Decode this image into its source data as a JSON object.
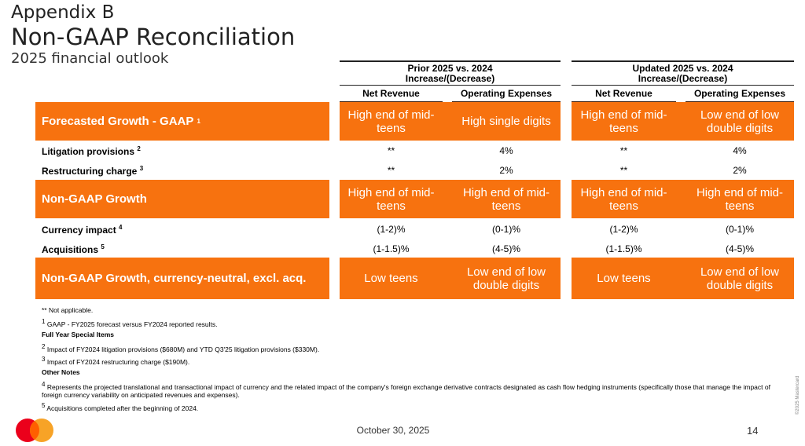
{
  "title": {
    "appendix": "Appendix B",
    "main": "Non-GAAP Reconciliation",
    "subtitle": "2025 financial outlook"
  },
  "groups": [
    {
      "line1": "Prior 2025 vs. 2024",
      "line2": "Increase/(Decrease)"
    },
    {
      "line1": "Updated 2025 vs. 2024",
      "line2": "Increase/(Decrease)"
    }
  ],
  "columns": [
    "Net Revenue",
    "Operating Expenses",
    "Net Revenue",
    "Operating Expenses"
  ],
  "rows": [
    {
      "label": "Forecasted Growth - GAAP",
      "sup": "1",
      "highlight": true,
      "values": [
        "High end of mid-teens",
        "High single digits",
        "High end of mid-teens",
        "Low end of low double digits"
      ]
    },
    {
      "label": "Litigation provisions",
      "sup": "2",
      "values": [
        "**",
        "4%",
        "**",
        "4%"
      ]
    },
    {
      "label": "Restructuring charge",
      "sup": "3",
      "values": [
        "**",
        "2%",
        "**",
        "2%"
      ]
    },
    {
      "label": "Non-GAAP Growth",
      "sup": "",
      "highlight": true,
      "values": [
        "High end of mid-teens",
        "High end of mid-teens",
        "High end of mid-teens",
        "High end of mid-teens"
      ]
    },
    {
      "label": "Currency impact",
      "sup": "4",
      "values": [
        "(1-2)%",
        "(0-1)%",
        "(1-2)%",
        "(0-1)%"
      ]
    },
    {
      "label": "Acquisitions",
      "sup": "5",
      "values": [
        "(1-1.5)%",
        "(4-5)%",
        "(1-1.5)%",
        "(4-5)%"
      ]
    },
    {
      "label": "Non-GAAP Growth, currency-neutral, excl. acq.",
      "sup": "",
      "highlight": true,
      "values": [
        "Low teens",
        "Low end of low double digits",
        "Low teens",
        "Low end of low double digits"
      ]
    }
  ],
  "footnotes": {
    "na": "** Not applicable.",
    "f1": {
      "sup": "1",
      "text": "GAAP - FY2025 forecast versus FY2024 reported results."
    },
    "special_heading": "Full Year Special Items",
    "f2": {
      "sup": "2",
      "text": "Impact of FY2024 litigation provisions ($680M) and YTD Q3'25 litigation provisions ($330M)."
    },
    "f3": {
      "sup": "3",
      "text": "Impact of FY2024 restructuring charge ($190M)."
    },
    "other_heading": "Other Notes",
    "f4": {
      "sup": "4",
      "text": "Represents the projected translational and transactional impact of currency and the related impact of the company's foreign exchange derivative contracts designated as cash flow hedging instruments (specifically those that manage the impact of foreign currency variability on anticipated revenues and expenses)."
    },
    "f5": {
      "sup": "5",
      "text": "Acquisitions completed after the beginning of 2024."
    }
  },
  "footer": {
    "date": "October 30, 2025",
    "page": "14",
    "copyright": "©2025 Mastercard"
  },
  "colors": {
    "accent": "#f7720f",
    "logo_red": "#eb001b",
    "logo_yellow": "#f79e1b"
  }
}
